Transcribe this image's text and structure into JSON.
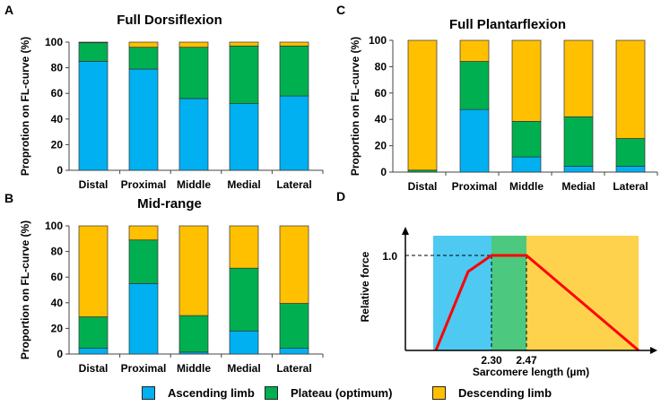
{
  "legend": {
    "ascending": "Ascending limb",
    "plateau": "Plateau (optimum)",
    "descending": "Descending limb"
  },
  "colors": {
    "ascending": "#00B0F0",
    "plateau": "#00B050",
    "descending": "#FFC000"
  },
  "chart_data": [
    {
      "panel": "A",
      "type": "bar",
      "stacked": true,
      "title": "Full Dorsiflexion",
      "ylabel": "Proprotion on FL-curve (%)",
      "ylim": [
        0,
        100
      ],
      "yticks": [
        "0",
        "20",
        "40",
        "60",
        "80",
        "100"
      ],
      "categories": [
        "Distal",
        "Proximal",
        "Middle",
        "Medial",
        "Lateral"
      ],
      "series": [
        {
          "name": "Ascending limb",
          "values": [
            85,
            79,
            56,
            52,
            58
          ]
        },
        {
          "name": "Plateau (optimum)",
          "values": [
            14.5,
            17,
            40,
            45,
            39
          ]
        },
        {
          "name": "Descending limb",
          "values": [
            0.5,
            4,
            4,
            3,
            3
          ]
        }
      ]
    },
    {
      "panel": "B",
      "type": "bar",
      "stacked": true,
      "title": "Mid-range",
      "ylabel": "Proportion on FL-curve (%)",
      "ylim": [
        0,
        100
      ],
      "yticks": [
        "0",
        "20",
        "40",
        "60",
        "80",
        "100"
      ],
      "categories": [
        "Distal",
        "Proximal",
        "Middle",
        "Medial",
        "Lateral"
      ],
      "series": [
        {
          "name": "Ascending limb",
          "values": [
            4.5,
            55,
            1.5,
            18,
            4.5
          ]
        },
        {
          "name": "Plateau (optimum)",
          "values": [
            24.5,
            34,
            28.5,
            49,
            35
          ]
        },
        {
          "name": "Descending limb",
          "values": [
            71,
            11,
            70,
            33,
            60.5
          ]
        }
      ]
    },
    {
      "panel": "C",
      "type": "bar",
      "stacked": true,
      "title": "Full Plantarflexion",
      "ylabel": "Proportion on FL-curve (%)",
      "ylim": [
        0,
        100
      ],
      "yticks": [
        "0",
        "20",
        "40",
        "60",
        "80",
        "100"
      ],
      "categories": [
        "Distal",
        "Proximal",
        "Middle",
        "Medial",
        "Lateral"
      ],
      "series": [
        {
          "name": "Ascending limb",
          "values": [
            0,
            47.5,
            11.5,
            4.5,
            4.5
          ]
        },
        {
          "name": "Plateau (optimum)",
          "values": [
            1.5,
            36.5,
            27,
            37.5,
            21
          ]
        },
        {
          "name": "Descending limb",
          "values": [
            98.5,
            16,
            61.5,
            58,
            74.5
          ]
        }
      ]
    },
    {
      "panel": "D",
      "type": "line",
      "xlabel": "Sarcomere length (µm)",
      "ylabel": "Relative force",
      "ytick": "1.0",
      "xticks": [
        "2.30",
        "2.47"
      ],
      "regions": [
        "Ascending limb",
        "Plateau (optimum)",
        "Descending limb"
      ]
    }
  ]
}
